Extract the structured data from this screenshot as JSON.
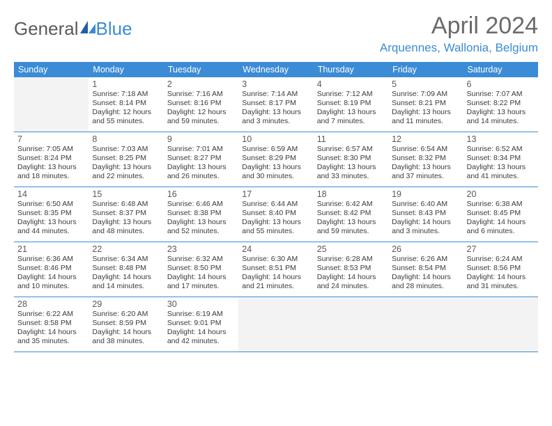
{
  "logo": {
    "general": "General",
    "blue": "Blue"
  },
  "title": "April 2024",
  "location": "Arquennes, Wallonia, Belgium",
  "colors": {
    "header_bg": "#3b8bd6",
    "header_text": "#ffffff",
    "text": "#3a3a3a",
    "empty_bg": "#f3f3f3",
    "logo_blue": "#3b8bd6",
    "title_gray": "#6a6a6a"
  },
  "weekdays": [
    "Sunday",
    "Monday",
    "Tuesday",
    "Wednesday",
    "Thursday",
    "Friday",
    "Saturday"
  ],
  "weeks": [
    [
      {
        "empty": true
      },
      {
        "day": "1",
        "sunrise": "Sunrise: 7:18 AM",
        "sunset": "Sunset: 8:14 PM",
        "dl1": "Daylight: 12 hours",
        "dl2": "and 55 minutes."
      },
      {
        "day": "2",
        "sunrise": "Sunrise: 7:16 AM",
        "sunset": "Sunset: 8:16 PM",
        "dl1": "Daylight: 12 hours",
        "dl2": "and 59 minutes."
      },
      {
        "day": "3",
        "sunrise": "Sunrise: 7:14 AM",
        "sunset": "Sunset: 8:17 PM",
        "dl1": "Daylight: 13 hours",
        "dl2": "and 3 minutes."
      },
      {
        "day": "4",
        "sunrise": "Sunrise: 7:12 AM",
        "sunset": "Sunset: 8:19 PM",
        "dl1": "Daylight: 13 hours",
        "dl2": "and 7 minutes."
      },
      {
        "day": "5",
        "sunrise": "Sunrise: 7:09 AM",
        "sunset": "Sunset: 8:21 PM",
        "dl1": "Daylight: 13 hours",
        "dl2": "and 11 minutes."
      },
      {
        "day": "6",
        "sunrise": "Sunrise: 7:07 AM",
        "sunset": "Sunset: 8:22 PM",
        "dl1": "Daylight: 13 hours",
        "dl2": "and 14 minutes."
      }
    ],
    [
      {
        "day": "7",
        "sunrise": "Sunrise: 7:05 AM",
        "sunset": "Sunset: 8:24 PM",
        "dl1": "Daylight: 13 hours",
        "dl2": "and 18 minutes."
      },
      {
        "day": "8",
        "sunrise": "Sunrise: 7:03 AM",
        "sunset": "Sunset: 8:25 PM",
        "dl1": "Daylight: 13 hours",
        "dl2": "and 22 minutes."
      },
      {
        "day": "9",
        "sunrise": "Sunrise: 7:01 AM",
        "sunset": "Sunset: 8:27 PM",
        "dl1": "Daylight: 13 hours",
        "dl2": "and 26 minutes."
      },
      {
        "day": "10",
        "sunrise": "Sunrise: 6:59 AM",
        "sunset": "Sunset: 8:29 PM",
        "dl1": "Daylight: 13 hours",
        "dl2": "and 30 minutes."
      },
      {
        "day": "11",
        "sunrise": "Sunrise: 6:57 AM",
        "sunset": "Sunset: 8:30 PM",
        "dl1": "Daylight: 13 hours",
        "dl2": "and 33 minutes."
      },
      {
        "day": "12",
        "sunrise": "Sunrise: 6:54 AM",
        "sunset": "Sunset: 8:32 PM",
        "dl1": "Daylight: 13 hours",
        "dl2": "and 37 minutes."
      },
      {
        "day": "13",
        "sunrise": "Sunrise: 6:52 AM",
        "sunset": "Sunset: 8:34 PM",
        "dl1": "Daylight: 13 hours",
        "dl2": "and 41 minutes."
      }
    ],
    [
      {
        "day": "14",
        "sunrise": "Sunrise: 6:50 AM",
        "sunset": "Sunset: 8:35 PM",
        "dl1": "Daylight: 13 hours",
        "dl2": "and 44 minutes."
      },
      {
        "day": "15",
        "sunrise": "Sunrise: 6:48 AM",
        "sunset": "Sunset: 8:37 PM",
        "dl1": "Daylight: 13 hours",
        "dl2": "and 48 minutes."
      },
      {
        "day": "16",
        "sunrise": "Sunrise: 6:46 AM",
        "sunset": "Sunset: 8:38 PM",
        "dl1": "Daylight: 13 hours",
        "dl2": "and 52 minutes."
      },
      {
        "day": "17",
        "sunrise": "Sunrise: 6:44 AM",
        "sunset": "Sunset: 8:40 PM",
        "dl1": "Daylight: 13 hours",
        "dl2": "and 55 minutes."
      },
      {
        "day": "18",
        "sunrise": "Sunrise: 6:42 AM",
        "sunset": "Sunset: 8:42 PM",
        "dl1": "Daylight: 13 hours",
        "dl2": "and 59 minutes."
      },
      {
        "day": "19",
        "sunrise": "Sunrise: 6:40 AM",
        "sunset": "Sunset: 8:43 PM",
        "dl1": "Daylight: 14 hours",
        "dl2": "and 3 minutes."
      },
      {
        "day": "20",
        "sunrise": "Sunrise: 6:38 AM",
        "sunset": "Sunset: 8:45 PM",
        "dl1": "Daylight: 14 hours",
        "dl2": "and 6 minutes."
      }
    ],
    [
      {
        "day": "21",
        "sunrise": "Sunrise: 6:36 AM",
        "sunset": "Sunset: 8:46 PM",
        "dl1": "Daylight: 14 hours",
        "dl2": "and 10 minutes."
      },
      {
        "day": "22",
        "sunrise": "Sunrise: 6:34 AM",
        "sunset": "Sunset: 8:48 PM",
        "dl1": "Daylight: 14 hours",
        "dl2": "and 14 minutes."
      },
      {
        "day": "23",
        "sunrise": "Sunrise: 6:32 AM",
        "sunset": "Sunset: 8:50 PM",
        "dl1": "Daylight: 14 hours",
        "dl2": "and 17 minutes."
      },
      {
        "day": "24",
        "sunrise": "Sunrise: 6:30 AM",
        "sunset": "Sunset: 8:51 PM",
        "dl1": "Daylight: 14 hours",
        "dl2": "and 21 minutes."
      },
      {
        "day": "25",
        "sunrise": "Sunrise: 6:28 AM",
        "sunset": "Sunset: 8:53 PM",
        "dl1": "Daylight: 14 hours",
        "dl2": "and 24 minutes."
      },
      {
        "day": "26",
        "sunrise": "Sunrise: 6:26 AM",
        "sunset": "Sunset: 8:54 PM",
        "dl1": "Daylight: 14 hours",
        "dl2": "and 28 minutes."
      },
      {
        "day": "27",
        "sunrise": "Sunrise: 6:24 AM",
        "sunset": "Sunset: 8:56 PM",
        "dl1": "Daylight: 14 hours",
        "dl2": "and 31 minutes."
      }
    ],
    [
      {
        "day": "28",
        "sunrise": "Sunrise: 6:22 AM",
        "sunset": "Sunset: 8:58 PM",
        "dl1": "Daylight: 14 hours",
        "dl2": "and 35 minutes."
      },
      {
        "day": "29",
        "sunrise": "Sunrise: 6:20 AM",
        "sunset": "Sunset: 8:59 PM",
        "dl1": "Daylight: 14 hours",
        "dl2": "and 38 minutes."
      },
      {
        "day": "30",
        "sunrise": "Sunrise: 6:19 AM",
        "sunset": "Sunset: 9:01 PM",
        "dl1": "Daylight: 14 hours",
        "dl2": "and 42 minutes."
      },
      {
        "empty": true
      },
      {
        "empty": true
      },
      {
        "empty": true
      },
      {
        "empty": true
      }
    ]
  ]
}
